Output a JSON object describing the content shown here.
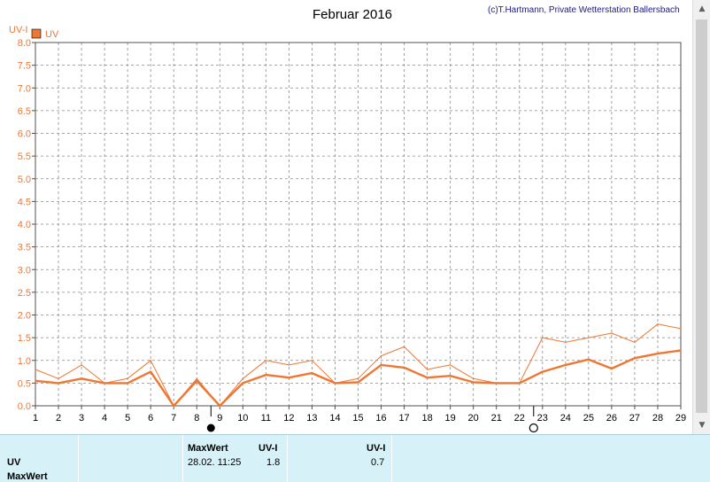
{
  "chart_data": {
    "type": "line",
    "title": "Februar 2016",
    "copyright": "(c)T.Hartmann, Private Wetterstation Ballersbach",
    "ylabel": "UV-I",
    "legend": "UV",
    "legend_position": "top-left",
    "grid": true,
    "ylim": [
      0,
      8
    ],
    "yticks": [
      "0.0",
      "0.5",
      "1.0",
      "1.5",
      "2.0",
      "2.5",
      "3.0",
      "3.5",
      "4.0",
      "4.5",
      "5.0",
      "5.5",
      "6.0",
      "6.5",
      "7.0",
      "7.5",
      "8.0"
    ],
    "x": [
      1,
      2,
      3,
      4,
      5,
      6,
      7,
      8,
      9,
      10,
      11,
      12,
      13,
      14,
      15,
      16,
      17,
      18,
      19,
      20,
      21,
      22,
      23,
      24,
      25,
      26,
      27,
      28,
      29
    ],
    "series": [
      {
        "values": [
          0.8,
          0.6,
          0.9,
          0.5,
          0.6,
          1.0,
          0.0,
          0.6,
          0.0,
          0.6,
          1.0,
          0.9,
          1.0,
          0.5,
          0.6,
          1.1,
          1.3,
          0.8,
          0.9,
          0.6,
          0.5,
          0.5,
          1.5,
          1.4,
          1.5,
          1.6,
          1.4,
          1.8,
          1.7
        ]
      },
      {
        "values": [
          0.55,
          0.5,
          0.6,
          0.5,
          0.5,
          0.75,
          0.0,
          0.55,
          0.0,
          0.5,
          0.68,
          0.62,
          0.72,
          0.5,
          0.52,
          0.9,
          0.84,
          0.62,
          0.66,
          0.52,
          0.5,
          0.5,
          0.75,
          0.9,
          1.02,
          0.82,
          1.05,
          1.15,
          1.22
        ]
      }
    ],
    "moon_markers": [
      {
        "day": 9,
        "phase": "new-moon"
      },
      {
        "day": 23,
        "phase": "full-moon"
      }
    ],
    "colors": {
      "series": "#ee7733",
      "axis_text": "#ee7733",
      "grid": "#8a8a8a"
    }
  },
  "table": {
    "row_label": "UV",
    "row_label_2": "MaxWert",
    "max_header": "MaxWert",
    "unit_header": "UV-I",
    "unit_header_2": "UV-I",
    "max_date": "28.02.  11:25",
    "max_value": "1.8",
    "avg_value": "0.7"
  }
}
